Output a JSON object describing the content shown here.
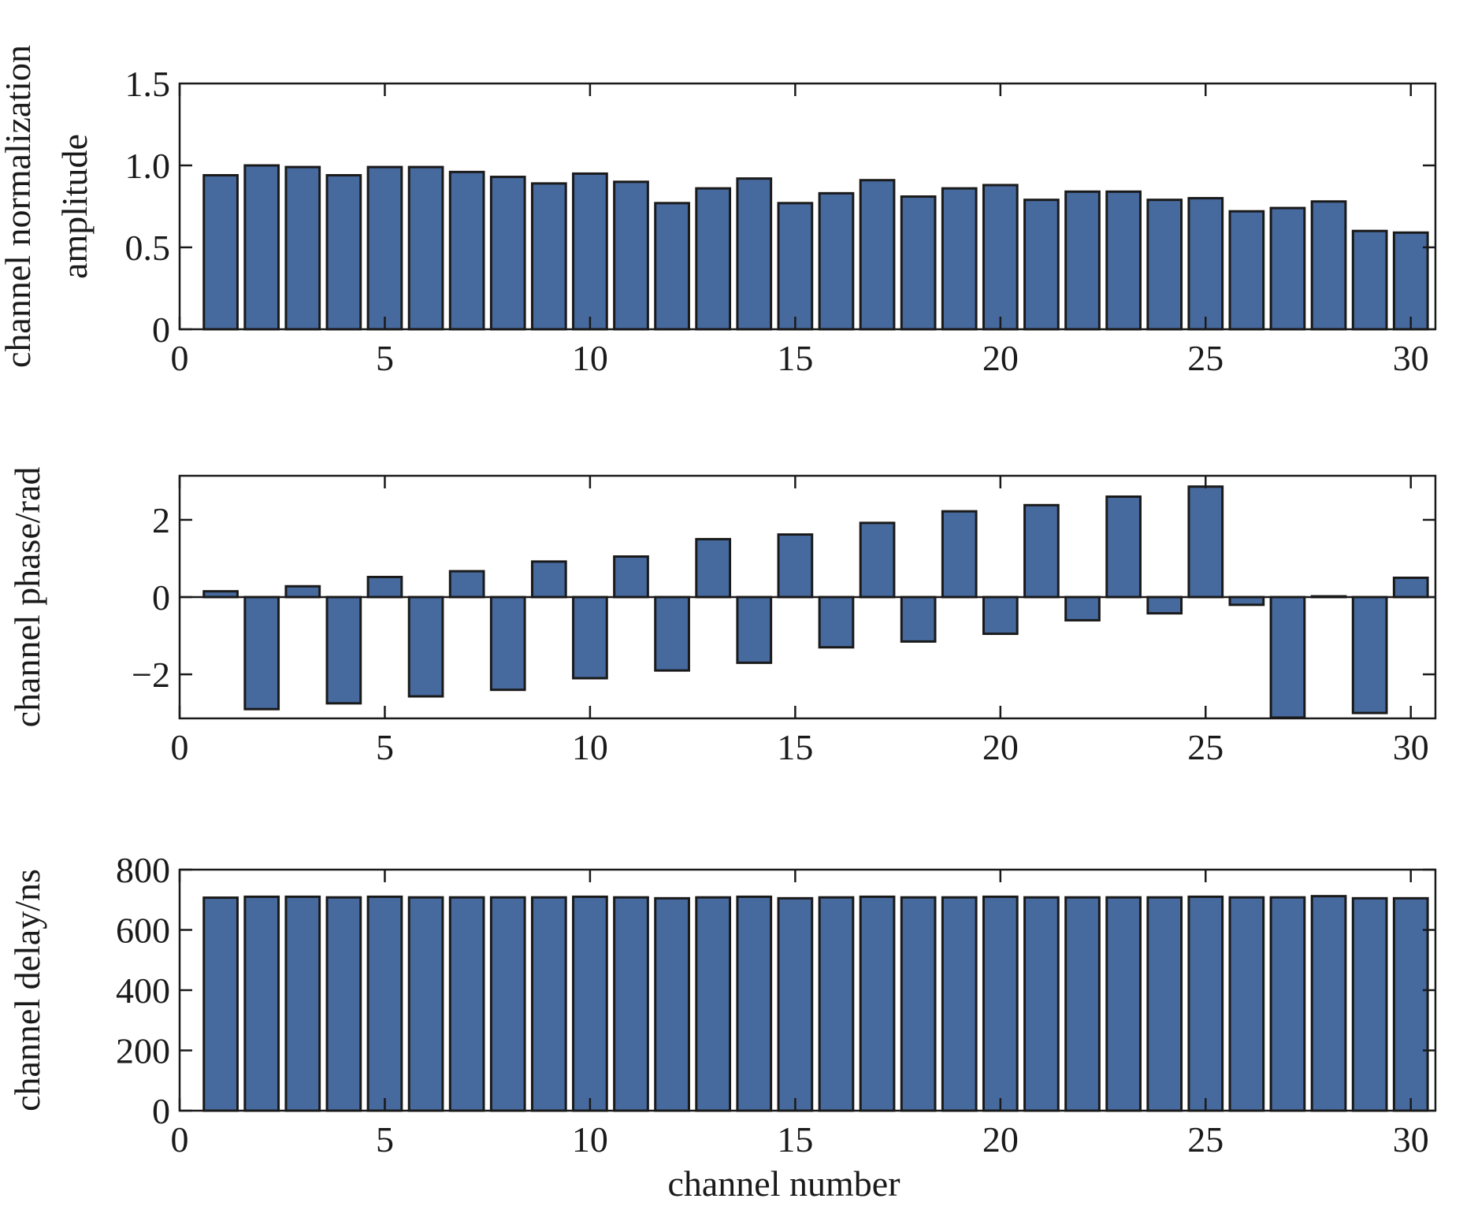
{
  "colors": {
    "bar_fill": "#46699e",
    "bar_edge": "#1a1a1a",
    "axis": "#1a1a1a"
  },
  "chart_data": [
    {
      "type": "bar",
      "ylabel": [
        "channel normalization",
        "amplitude"
      ],
      "xlabel": "",
      "xlim": [
        0,
        30.6
      ],
      "ylim": [
        0,
        1.5
      ],
      "xticks": [
        0,
        5,
        10,
        15,
        20,
        25,
        30
      ],
      "yticks": [
        0,
        0.5,
        1.0
      ],
      "ytick_labels": [
        "0",
        "0.5",
        "1.0",
        "1.5"
      ],
      "ytick_label_values": [
        0,
        0.5,
        1.0,
        1.5
      ],
      "grid": false,
      "x": [
        1,
        2,
        3,
        4,
        5,
        6,
        7,
        8,
        9,
        10,
        11,
        12,
        13,
        14,
        15,
        16,
        17,
        18,
        19,
        20,
        21,
        22,
        23,
        24,
        25,
        26,
        27,
        28,
        29,
        30
      ],
      "values": [
        0.94,
        1.0,
        0.99,
        0.94,
        0.99,
        0.99,
        0.96,
        0.93,
        0.89,
        0.95,
        0.9,
        0.77,
        0.86,
        0.92,
        0.77,
        0.83,
        0.91,
        0.81,
        0.86,
        0.88,
        0.79,
        0.84,
        0.84,
        0.79,
        0.8,
        0.72,
        0.74,
        0.78,
        0.6,
        0.59
      ]
    },
    {
      "type": "bar",
      "ylabel": [
        "channel phase/rad"
      ],
      "xlabel": "",
      "xlim": [
        0,
        30.6
      ],
      "ylim": [
        -3.14,
        3.14
      ],
      "xticks": [
        0,
        5,
        10,
        15,
        20,
        25,
        30
      ],
      "yticks": [
        -2,
        0,
        2
      ],
      "ytick_labels": [
        "−2",
        "0",
        "2"
      ],
      "ytick_label_values": [
        -2,
        0,
        2
      ],
      "grid": false,
      "x": [
        1,
        2,
        3,
        4,
        5,
        6,
        7,
        8,
        9,
        10,
        11,
        12,
        13,
        14,
        15,
        16,
        17,
        18,
        19,
        20,
        21,
        22,
        23,
        24,
        25,
        26,
        27,
        28,
        29,
        30
      ],
      "values": [
        0.15,
        -2.9,
        0.28,
        -2.75,
        0.52,
        -2.57,
        0.67,
        -2.4,
        0.92,
        -2.1,
        1.05,
        -1.9,
        1.5,
        -1.7,
        1.62,
        -1.3,
        1.92,
        -1.15,
        2.22,
        -0.95,
        2.38,
        -0.6,
        2.6,
        -0.42,
        2.86,
        -0.2,
        -3.12,
        0.02,
        -3.0,
        0.5
      ]
    },
    {
      "type": "bar",
      "ylabel": [
        "channel delay/ns"
      ],
      "xlabel": "channel number",
      "xlim": [
        0,
        30.6
      ],
      "ylim": [
        0,
        800
      ],
      "xticks": [
        0,
        5,
        10,
        15,
        20,
        25,
        30
      ],
      "yticks": [
        0,
        200,
        400,
        600,
        800
      ],
      "ytick_labels": [
        "0",
        "200",
        "400",
        "600",
        "800"
      ],
      "ytick_label_values": [
        0,
        200,
        400,
        600,
        800
      ],
      "grid": false,
      "x": [
        1,
        2,
        3,
        4,
        5,
        6,
        7,
        8,
        9,
        10,
        11,
        12,
        13,
        14,
        15,
        16,
        17,
        18,
        19,
        20,
        21,
        22,
        23,
        24,
        25,
        26,
        27,
        28,
        29,
        30
      ],
      "values": [
        707,
        710,
        710,
        708,
        710,
        708,
        708,
        708,
        708,
        710,
        708,
        705,
        708,
        710,
        705,
        708,
        710,
        708,
        708,
        710,
        708,
        708,
        708,
        708,
        710,
        708,
        708,
        712,
        705,
        705
      ]
    }
  ]
}
